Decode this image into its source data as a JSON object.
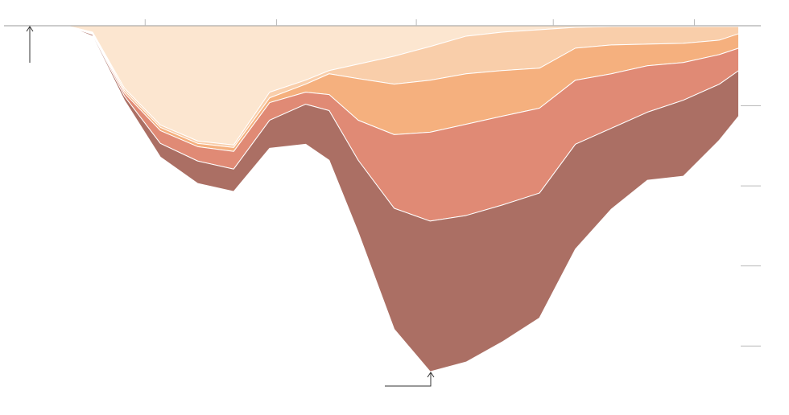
{
  "chart_data": {
    "type": "stacked-area",
    "x": [
      0.45,
      0.64,
      0.87,
      1.13,
      1.4,
      1.66,
      1.92,
      2.18,
      2.35,
      2.56,
      2.82,
      3.08,
      3.34,
      3.6,
      3.87,
      4.13,
      4.39,
      4.65,
      4.91,
      5.17,
      5.31
    ],
    "xlim": [
      0,
      5.47
    ],
    "xticks": [
      1.02,
      1.97,
      2.98,
      3.97,
      4.99
    ],
    "ylim": [
      -4.5,
      0
    ],
    "yticks": [
      -4,
      -3,
      -2,
      -1
    ],
    "series": [
      {
        "color": "#fce6d0",
        "values": [
          0,
          -0.08,
          -0.78,
          -1.24,
          -1.44,
          -1.49,
          -0.83,
          -0.68,
          -0.56,
          -0.48,
          -0.38,
          -0.26,
          -0.13,
          -0.08,
          -0.05,
          -0.02,
          -0.01,
          -0.01,
          -0.01,
          -0.01,
          -0.01
        ]
      },
      {
        "color": "#f9ceaa",
        "values": [
          0,
          -0.01,
          -0.03,
          -0.03,
          -0.03,
          -0.03,
          -0.07,
          -0.05,
          -0.04,
          -0.18,
          -0.35,
          -0.42,
          -0.47,
          -0.48,
          -0.48,
          -0.26,
          -0.23,
          -0.22,
          -0.21,
          -0.17,
          -0.09
        ]
      },
      {
        "color": "#f5b07e",
        "values": [
          0,
          -0.01,
          -0.03,
          -0.04,
          -0.04,
          -0.05,
          -0.06,
          -0.1,
          -0.26,
          -0.52,
          -0.63,
          -0.65,
          -0.63,
          -0.57,
          -0.5,
          -0.4,
          -0.36,
          -0.27,
          -0.24,
          -0.18,
          -0.18
        ]
      },
      {
        "color": "#e08a75",
        "values": [
          0,
          -0.01,
          -0.04,
          -0.16,
          -0.18,
          -0.22,
          -0.22,
          -0.15,
          -0.2,
          -0.5,
          -0.92,
          -1.11,
          -1.14,
          -1.11,
          -1.06,
          -0.8,
          -0.68,
          -0.58,
          -0.47,
          -0.37,
          -0.28
        ]
      },
      {
        "color": "#ab6f64",
        "values": [
          0,
          -0.02,
          -0.05,
          -0.17,
          -0.28,
          -0.28,
          -0.35,
          -0.5,
          -0.62,
          -0.9,
          -1.51,
          -1.88,
          -1.83,
          -1.71,
          -1.56,
          -1.31,
          -1.01,
          -0.85,
          -0.95,
          -0.7,
          -0.57
        ]
      }
    ]
  }
}
